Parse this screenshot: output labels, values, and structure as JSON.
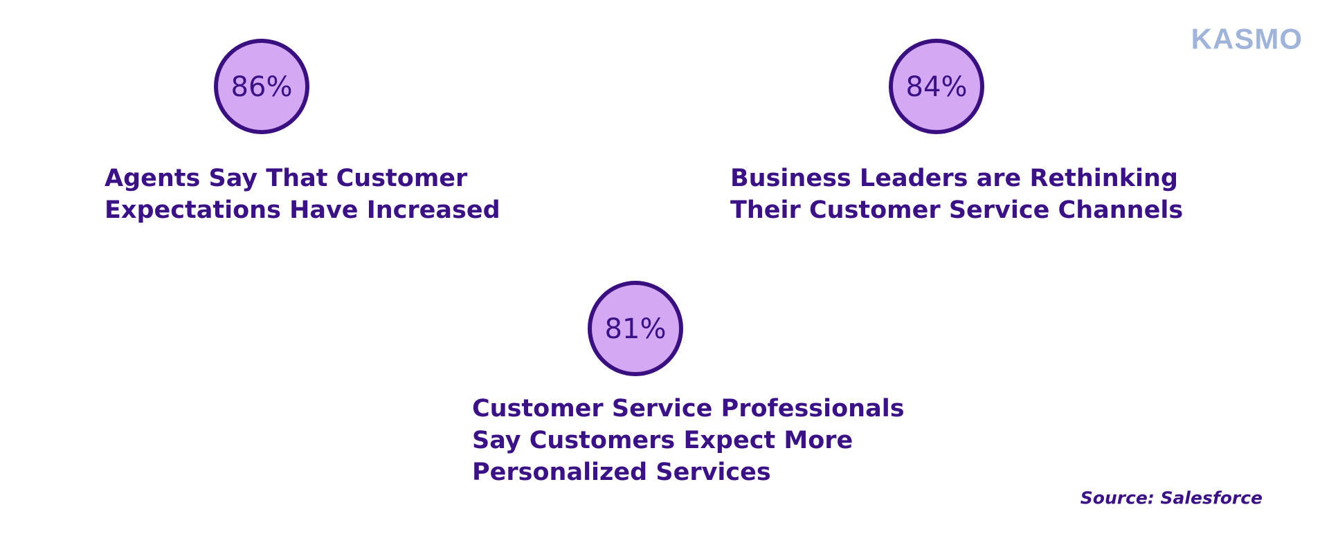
{
  "logo": "KASMO",
  "stats": [
    {
      "value": "86%",
      "label": [
        "Agents Say That Customer",
        "Expectations Have Increased"
      ]
    },
    {
      "value": "84%",
      "label": [
        "Business Leaders are Rethinking",
        "Their Customer Service Channels"
      ]
    },
    {
      "value": "81%",
      "label": [
        "Customer Service Professionals",
        "Say Customers Expect More",
        "Personalized Services"
      ]
    }
  ],
  "source": "Source: Salesforce"
}
